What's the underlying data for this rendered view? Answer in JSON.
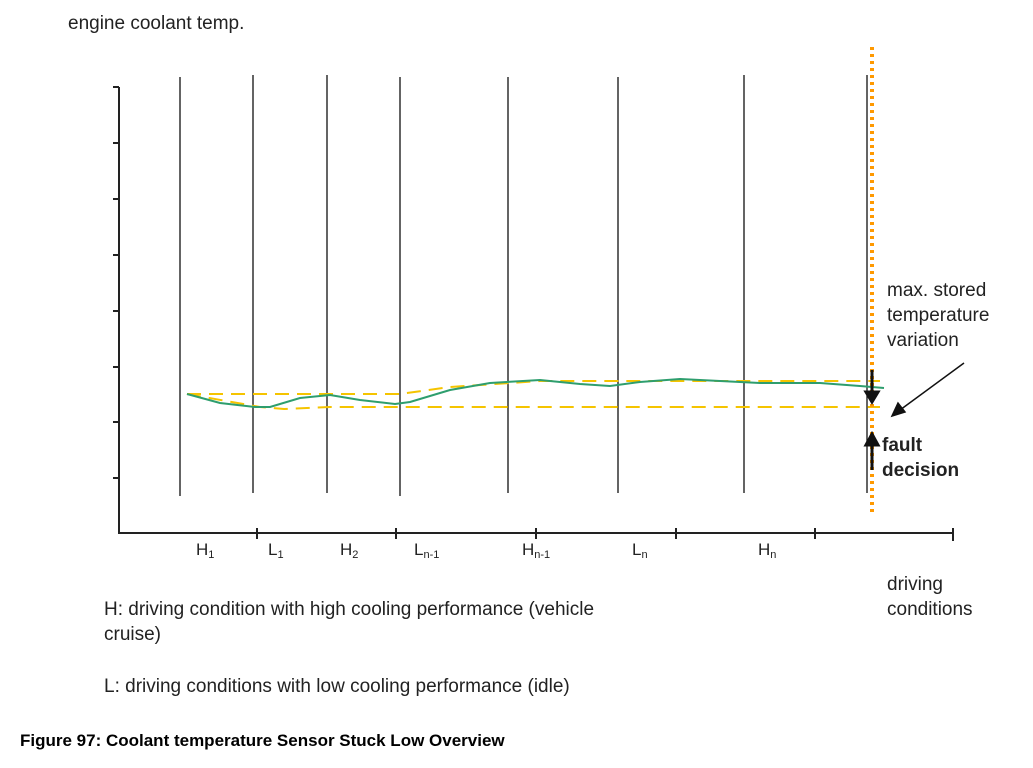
{
  "y_axis_label": "engine coolant temp.",
  "x_axis_label_line1": "driving",
  "x_axis_label_line2": "conditions",
  "annotation_variation": [
    "max. stored",
    "temperature",
    "variation"
  ],
  "annotation_fault": [
    "fault",
    "decision"
  ],
  "segments": [
    {
      "main": "H",
      "sub": "1"
    },
    {
      "main": "L",
      "sub": "1"
    },
    {
      "main": "H",
      "sub": "2"
    },
    {
      "main": "L",
      "sub": "n-1"
    },
    {
      "main": "H",
      "sub": "n-1"
    },
    {
      "main": "L",
      "sub": "n"
    },
    {
      "main": "H",
      "sub": "n"
    }
  ],
  "legend_h_line1": "H: driving condition with high cooling performance (vehicle",
  "legend_h_line2": "cruise)",
  "legend_l": "L: driving conditions with low cooling performance (idle)",
  "caption": "Figure 97: Coolant temperature Sensor Stuck Low Overview",
  "colors": {
    "temperature_curve": "#2e9e6e",
    "band": "#f5c400",
    "fault_line": "#ff9900"
  }
}
